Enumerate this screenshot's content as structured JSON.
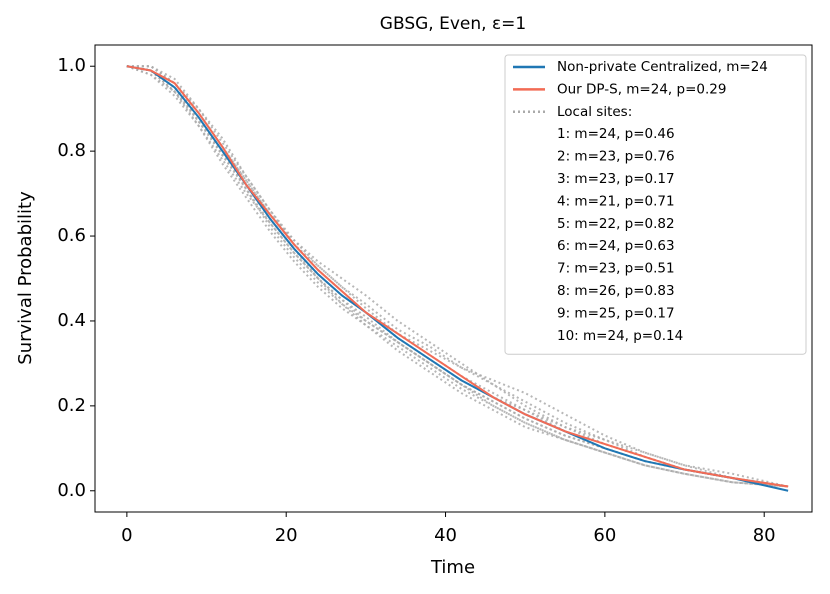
{
  "chart_data": {
    "type": "line",
    "title": "GBSG, Even, ε=1",
    "xlabel": "Time",
    "ylabel": "Survival Probability",
    "x": [
      0,
      3,
      6,
      9,
      12,
      15,
      18,
      21,
      24,
      27,
      30,
      34,
      38,
      42,
      46,
      50,
      55,
      60,
      65,
      70,
      76,
      83
    ],
    "xlim": [
      -4,
      86
    ],
    "ylim": [
      -0.05,
      1.05
    ],
    "xticks": [
      0,
      20,
      40,
      60,
      80
    ],
    "yticks": [
      {
        "value": 0,
        "label": "0.0"
      },
      0.2,
      0.4,
      0.6,
      0.8,
      {
        "value": 1,
        "label": "1.0"
      }
    ],
    "legend": "upper right",
    "local_sites": {
      "label": "Local sites:",
      "color": "#aaaaaa",
      "series": [
        {
          "name": "1: m=24, p=0.46",
          "values": [
            1.0,
            0.99,
            0.94,
            0.87,
            0.79,
            0.71,
            0.63,
            0.56,
            0.5,
            0.45,
            0.41,
            0.35,
            0.3,
            0.25,
            0.21,
            0.17,
            0.13,
            0.1,
            0.07,
            0.05,
            0.03,
            0.01
          ]
        },
        {
          "name": "2: m=23, p=0.76",
          "values": [
            1.0,
            1.0,
            0.96,
            0.9,
            0.82,
            0.74,
            0.66,
            0.59,
            0.53,
            0.48,
            0.44,
            0.38,
            0.34,
            0.29,
            0.25,
            0.21,
            0.16,
            0.12,
            0.09,
            0.06,
            0.04,
            0.01
          ]
        },
        {
          "name": "3: m=23, p=0.17",
          "values": [
            1.0,
            0.98,
            0.93,
            0.86,
            0.77,
            0.69,
            0.61,
            0.54,
            0.48,
            0.43,
            0.39,
            0.33,
            0.28,
            0.23,
            0.19,
            0.15,
            0.12,
            0.09,
            0.06,
            0.04,
            0.02,
            0.01
          ]
        },
        {
          "name": "4: m=21, p=0.71",
          "values": [
            1.0,
            0.99,
            0.95,
            0.89,
            0.81,
            0.73,
            0.65,
            0.58,
            0.53,
            0.48,
            0.43,
            0.37,
            0.33,
            0.29,
            0.26,
            0.23,
            0.18,
            0.13,
            0.09,
            0.06,
            0.03,
            0.01
          ]
        },
        {
          "name": "5: m=22, p=0.82",
          "values": [
            1.0,
            1.0,
            0.97,
            0.9,
            0.83,
            0.74,
            0.66,
            0.58,
            0.52,
            0.47,
            0.42,
            0.36,
            0.31,
            0.26,
            0.22,
            0.19,
            0.15,
            0.12,
            0.08,
            0.05,
            0.03,
            0.01
          ]
        },
        {
          "name": "6: m=24, p=0.63",
          "values": [
            1.0,
            0.99,
            0.95,
            0.87,
            0.8,
            0.71,
            0.62,
            0.55,
            0.49,
            0.44,
            0.4,
            0.35,
            0.3,
            0.25,
            0.2,
            0.16,
            0.12,
            0.09,
            0.06,
            0.04,
            0.02,
            0.01
          ]
        },
        {
          "name": "7: m=23, p=0.51",
          "values": [
            1.0,
            0.99,
            0.94,
            0.88,
            0.79,
            0.72,
            0.64,
            0.57,
            0.51,
            0.46,
            0.42,
            0.37,
            0.32,
            0.27,
            0.23,
            0.19,
            0.14,
            0.11,
            0.08,
            0.05,
            0.03,
            0.01
          ]
        },
        {
          "name": "8: m=26, p=0.83",
          "values": [
            1.0,
            1.0,
            0.96,
            0.89,
            0.81,
            0.73,
            0.65,
            0.59,
            0.54,
            0.5,
            0.46,
            0.4,
            0.35,
            0.3,
            0.25,
            0.2,
            0.15,
            0.11,
            0.08,
            0.05,
            0.03,
            0.01
          ]
        },
        {
          "name": "9: m=25, p=0.17",
          "values": [
            1.0,
            0.98,
            0.94,
            0.86,
            0.78,
            0.7,
            0.63,
            0.56,
            0.5,
            0.44,
            0.39,
            0.34,
            0.29,
            0.24,
            0.2,
            0.16,
            0.12,
            0.09,
            0.06,
            0.04,
            0.02,
            0.01
          ]
        },
        {
          "name": "10: m=24, p=0.14",
          "values": [
            1.0,
            0.99,
            0.95,
            0.88,
            0.8,
            0.72,
            0.64,
            0.57,
            0.5,
            0.45,
            0.4,
            0.35,
            0.3,
            0.25,
            0.21,
            0.17,
            0.13,
            0.1,
            0.07,
            0.05,
            0.03,
            0.01
          ]
        }
      ]
    },
    "series": [
      {
        "name": "Non-private Centralized, m=24",
        "color": "#1f77b4",
        "values": [
          1.0,
          0.99,
          0.95,
          0.88,
          0.8,
          0.72,
          0.64,
          0.57,
          0.51,
          0.46,
          0.42,
          0.36,
          0.31,
          0.26,
          0.22,
          0.18,
          0.14,
          0.1,
          0.07,
          0.05,
          0.03,
          0.0
        ]
      },
      {
        "name": "Our DP-S, m=24, p=0.29",
        "color": "#f26b55",
        "values": [
          1.0,
          0.99,
          0.96,
          0.89,
          0.81,
          0.72,
          0.65,
          0.58,
          0.52,
          0.47,
          0.42,
          0.37,
          0.32,
          0.27,
          0.22,
          0.18,
          0.14,
          0.11,
          0.08,
          0.05,
          0.03,
          0.01
        ]
      }
    ]
  }
}
